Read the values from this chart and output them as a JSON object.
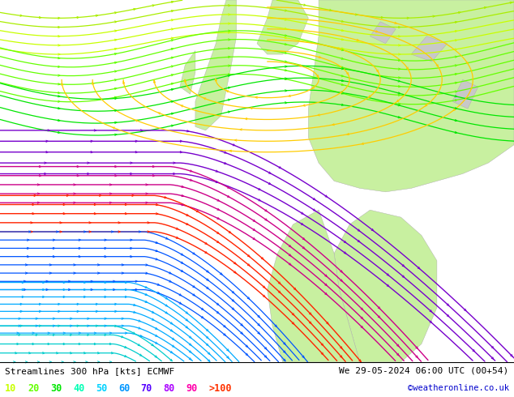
{
  "title_left": "Streamlines 300 hPa [kts] ECMWF",
  "title_right": "We 29-05-2024 06:00 UTC (00+54)",
  "copyright": "©weatheronline.co.uk",
  "legend_values": [
    "10",
    "20",
    "30",
    "40",
    "50",
    "60",
    "70",
    "80",
    "90",
    ">100"
  ],
  "legend_colors": [
    "#c8ff00",
    "#64ff00",
    "#00e600",
    "#00ffb4",
    "#00d2ff",
    "#0096ff",
    "#5500ff",
    "#aa00ff",
    "#ff00aa",
    "#ff3200"
  ],
  "bg_color": "#e8e8e8",
  "land_color_green": "#c8f0a0",
  "land_color_gray": "#c0c0c0",
  "figsize": [
    6.34,
    4.9
  ],
  "dpi": 100,
  "bottom_bar_height": 0.088
}
